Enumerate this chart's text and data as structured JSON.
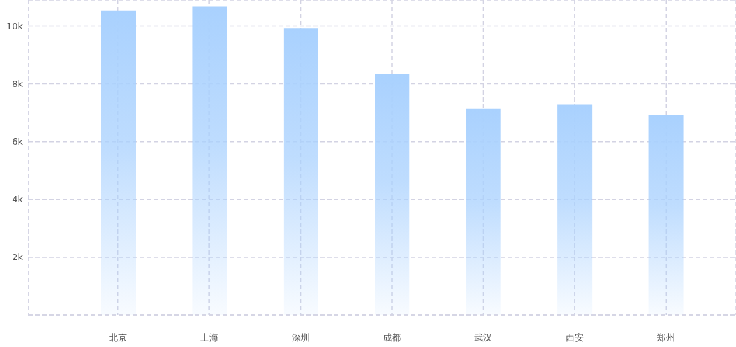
{
  "chart_data": {
    "type": "bar",
    "categories": [
      "北京",
      "上海",
      "深圳",
      "成都",
      "武汉",
      "西安",
      "郑州"
    ],
    "values": [
      10.52,
      10.67,
      9.93,
      8.33,
      7.13,
      7.28,
      6.93
    ],
    "color": "#a9d1fe",
    "ylim": [
      0,
      10.9
    ],
    "yticks": [
      {
        "value": 0,
        "label": null
      },
      {
        "value": 2,
        "label": "2k"
      },
      {
        "value": 4,
        "label": "4k"
      },
      {
        "value": 6,
        "label": "6k"
      },
      {
        "value": 8,
        "label": "8k"
      },
      {
        "value": 10,
        "label": "10k"
      }
    ],
    "grid": true
  }
}
